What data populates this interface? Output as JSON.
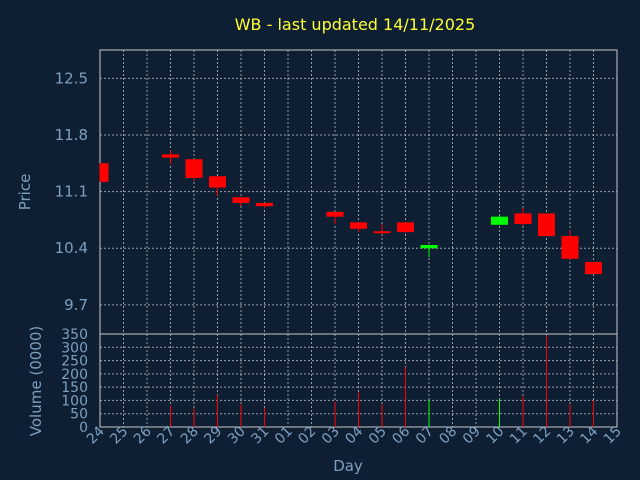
{
  "chart_data": {
    "type": "candlestick",
    "title": "WB - last updated 14/11/2025",
    "xlabel": "Day",
    "price_panel": {
      "ylabel": "Price",
      "ylim": [
        9.34,
        12.85
      ],
      "yticks": [
        "12.5",
        "11.8",
        "11.1",
        "10.4",
        "9.7"
      ],
      "ytick_values": [
        12.5,
        11.8,
        11.1,
        10.4,
        9.7
      ],
      "grid": true
    },
    "volume_panel": {
      "ylabel": "Volume (0000)",
      "ylim": [
        0,
        350
      ],
      "yticks": [
        "350",
        "300",
        "250",
        "200",
        "150",
        "100",
        "50",
        "0"
      ],
      "ytick_values": [
        350,
        300,
        250,
        200,
        150,
        100,
        50,
        0
      ],
      "grid": true
    },
    "x_labels": [
      "24",
      "25",
      "26",
      "27",
      "28",
      "29",
      "30",
      "31",
      "01",
      "02",
      "03",
      "04",
      "05",
      "06",
      "07",
      "08",
      "09",
      "10",
      "11",
      "12",
      "13",
      "14",
      "15"
    ],
    "up_color": "#00ff00",
    "down_color": "#ff0000",
    "candles": [
      {
        "day": "24",
        "open": 11.45,
        "high": 11.45,
        "low": 11.22,
        "close": 11.22,
        "volume": 0
      },
      {
        "day": "27",
        "open": 11.56,
        "high": 11.61,
        "low": 11.44,
        "close": 11.52,
        "volume": 80
      },
      {
        "day": "28",
        "open": 11.5,
        "high": 11.5,
        "low": 11.23,
        "close": 11.27,
        "volume": 70
      },
      {
        "day": "29",
        "open": 11.29,
        "high": 11.29,
        "low": 11.05,
        "close": 11.15,
        "volume": 120
      },
      {
        "day": "30",
        "open": 11.03,
        "high": 11.03,
        "low": 10.92,
        "close": 10.96,
        "volume": 85
      },
      {
        "day": "31",
        "open": 10.96,
        "high": 10.96,
        "low": 10.89,
        "close": 10.92,
        "volume": 70
      },
      {
        "day": "03",
        "open": 10.85,
        "high": 10.85,
        "low": 10.7,
        "close": 10.79,
        "volume": 95
      },
      {
        "day": "04",
        "open": 10.72,
        "high": 10.72,
        "low": 10.6,
        "close": 10.64,
        "volume": 130
      },
      {
        "day": "05",
        "open": 10.61,
        "high": 10.7,
        "low": 10.57,
        "close": 10.6,
        "volume": 85
      },
      {
        "day": "06",
        "open": 10.72,
        "high": 10.72,
        "low": 10.59,
        "close": 10.6,
        "volume": 225
      },
      {
        "day": "07",
        "open": 10.4,
        "high": 10.44,
        "low": 10.29,
        "close": 10.44,
        "volume": 100
      },
      {
        "day": "10",
        "open": 10.69,
        "high": 10.81,
        "low": 10.69,
        "close": 10.79,
        "volume": 105
      },
      {
        "day": "11",
        "open": 10.83,
        "high": 10.9,
        "low": 10.68,
        "close": 10.7,
        "volume": 115
      },
      {
        "day": "12",
        "open": 10.83,
        "high": 10.83,
        "low": 10.55,
        "close": 10.55,
        "volume": 345
      },
      {
        "day": "13",
        "open": 10.55,
        "high": 10.62,
        "low": 10.26,
        "close": 10.27,
        "volume": 85
      },
      {
        "day": "14",
        "open": 10.23,
        "high": 10.23,
        "low": 10.08,
        "close": 10.08,
        "volume": 100
      }
    ]
  }
}
